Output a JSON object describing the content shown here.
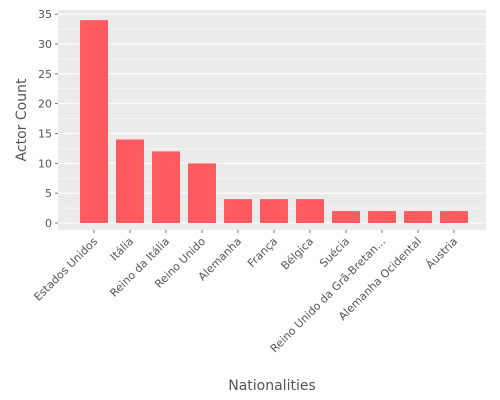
{
  "chart_data": {
    "type": "bar",
    "xlabel": "Nationalities",
    "ylabel": "Actor Count",
    "categories": [
      "Estados Unidos",
      "Itália",
      "Reino da Itália",
      "Reino Unido",
      "Alemanha",
      "França",
      "Bélgica",
      "Suécia",
      "Reino Unido da Grã-Bretan...",
      "Alemanha Ocidental",
      "Áustria"
    ],
    "values": [
      34,
      14,
      12,
      10,
      4,
      4,
      4,
      2,
      2,
      2,
      2
    ],
    "ylim": [
      0,
      35.7
    ],
    "yticks": [
      0,
      5,
      10,
      15,
      20,
      25,
      30,
      35
    ],
    "grid": true,
    "bar_color": "#ff5a5f",
    "panel_color": "#ebebeb"
  }
}
